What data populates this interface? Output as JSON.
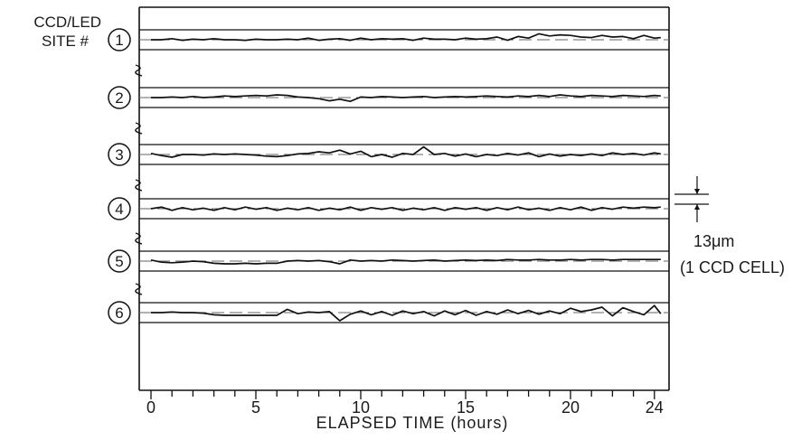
{
  "chart_data": {
    "type": "line",
    "ylabel": "CCD/LED SITE #",
    "xlabel": "ELAPSED TIME (hours)",
    "xlim": [
      0,
      24.3
    ],
    "x_ticks": [
      "0",
      "5",
      "10",
      "15",
      "20",
      "24"
    ],
    "scale_bar_value": "13μm",
    "scale_bar_note": "(1 CCD CELL)",
    "grid": false,
    "series": [
      {
        "name": "1",
        "x": [
          0,
          0.5,
          1,
          1.5,
          2,
          2.5,
          3,
          3.5,
          4,
          4.5,
          5,
          5.5,
          6,
          6.5,
          7,
          7.5,
          8,
          8.5,
          9,
          9.5,
          10,
          10.5,
          11,
          11.5,
          12,
          12.5,
          13,
          13.5,
          14,
          14.5,
          15,
          15.5,
          16,
          16.5,
          17,
          17.5,
          18,
          18.5,
          19,
          19.5,
          20,
          20.5,
          21,
          21.5,
          22,
          22.5,
          23,
          23.5,
          24,
          24.3
        ],
        "y": [
          0,
          0,
          0.2,
          -0.1,
          0.1,
          0,
          0.2,
          0,
          0,
          -0.1,
          0.1,
          0,
          0,
          0.1,
          0,
          0.3,
          -0.1,
          0.1,
          0.2,
          -0.1,
          0.3,
          0,
          0.2,
          0.1,
          0.2,
          -0.1,
          0.3,
          0.1,
          0.1,
          0,
          0.3,
          0.1,
          0.2,
          0.5,
          -0.1,
          0.6,
          0.3,
          1.1,
          0.7,
          0.9,
          0.8,
          0.5,
          0.4,
          0.8,
          0.5,
          0.6,
          0.2,
          0.8,
          0.3,
          0.4
        ]
      },
      {
        "name": "2",
        "x": [
          0,
          0.5,
          1,
          1.5,
          2,
          2.5,
          3,
          3.5,
          4,
          4.5,
          5,
          5.5,
          6,
          6.5,
          7,
          7.5,
          8,
          8.5,
          9,
          9.5,
          10,
          10.5,
          11,
          11.5,
          12,
          12.5,
          13,
          13.5,
          14,
          14.5,
          15,
          15.5,
          16,
          16.5,
          17,
          17.5,
          18,
          18.5,
          19,
          19.5,
          20,
          20.5,
          21,
          21.5,
          22,
          22.5,
          23,
          23.5,
          24,
          24.3
        ],
        "y": [
          0,
          0,
          0.1,
          0,
          0.2,
          0,
          0.1,
          0.3,
          0.2,
          0.3,
          0.4,
          0.3,
          0.5,
          0.4,
          0.1,
          0,
          -0.2,
          -0.6,
          -0.3,
          -0.7,
          0.1,
          0,
          0.2,
          0.1,
          0,
          0.1,
          0.2,
          0,
          0.1,
          0.2,
          0.1,
          0.2,
          0.3,
          0.2,
          0.1,
          0.3,
          0.2,
          0.4,
          0.2,
          0.5,
          0.3,
          0.2,
          0.4,
          0.3,
          0.2,
          0.4,
          0.3,
          0.2,
          0.4,
          0.3
        ]
      },
      {
        "name": "3",
        "x": [
          0,
          0.5,
          1,
          1.5,
          2,
          2.5,
          3,
          3.5,
          4,
          4.5,
          5,
          5.5,
          6,
          6.5,
          7,
          7.5,
          8,
          8.5,
          9,
          9.5,
          10,
          10.5,
          11,
          11.5,
          12,
          12.5,
          13,
          13.5,
          14,
          14.5,
          15,
          15.5,
          16,
          16.5,
          17,
          17.5,
          18,
          18.5,
          19,
          19.5,
          20,
          20.5,
          21,
          21.5,
          22,
          22.5,
          23,
          23.5,
          24,
          24.3
        ],
        "y": [
          0.2,
          -0.2,
          -0.5,
          0,
          0,
          -0.1,
          0.1,
          0,
          0.1,
          0,
          -0.1,
          -0.3,
          -0.4,
          -0.2,
          0.1,
          0.2,
          0.5,
          0.3,
          0.8,
          0.1,
          0.6,
          -0.4,
          0,
          -0.5,
          0.2,
          0,
          1.4,
          0,
          0.2,
          -0.3,
          0.1,
          -0.4,
          0,
          -0.2,
          0.2,
          -0.1,
          0.3,
          -0.4,
          0.1,
          -0.3,
          0,
          -0.2,
          0.1,
          -0.2,
          0.3,
          0,
          0.2,
          -0.1,
          0.3,
          0.1
        ]
      },
      {
        "name": "4",
        "x": [
          0,
          0.5,
          1,
          1.5,
          2,
          2.5,
          3,
          3.5,
          4,
          4.5,
          5,
          5.5,
          6,
          6.5,
          7,
          7.5,
          8,
          8.5,
          9,
          9.5,
          10,
          10.5,
          11,
          11.5,
          12,
          12.5,
          13,
          13.5,
          14,
          14.5,
          15,
          15.5,
          16,
          16.5,
          17,
          17.5,
          18,
          18.5,
          19,
          19.5,
          20,
          20.5,
          21,
          21.5,
          22,
          22.5,
          23,
          23.5,
          24,
          24.3
        ],
        "y": [
          0,
          0.3,
          -0.3,
          0.2,
          -0.2,
          0.1,
          -0.3,
          0.2,
          -0.2,
          0.3,
          -0.1,
          0.2,
          -0.3,
          0.1,
          -0.2,
          0.2,
          -0.3,
          0.1,
          -0.2,
          0.3,
          -0.3,
          0.2,
          -0.1,
          0.2,
          -0.3,
          0.1,
          -0.2,
          0.2,
          -0.3,
          0.2,
          -0.1,
          0.2,
          -0.3,
          0.2,
          -0.2,
          0.3,
          -0.2,
          0.1,
          -0.3,
          0.2,
          -0.2,
          0.3,
          -0.3,
          0.2,
          -0.1,
          0.3,
          0.1,
          0.3,
          0.2,
          0.3
        ]
      },
      {
        "name": "5",
        "x": [
          0,
          0.5,
          1,
          1.5,
          2,
          2.5,
          3,
          3.5,
          4,
          4.5,
          5,
          5.5,
          6,
          6.5,
          7,
          7.5,
          8,
          8.5,
          9,
          9.5,
          10,
          10.5,
          11,
          11.5,
          12,
          12.5,
          13,
          13.5,
          14,
          14.5,
          15,
          15.5,
          16,
          16.5,
          17,
          17.5,
          18,
          18.5,
          19,
          19.5,
          20,
          20.5,
          21,
          21.5,
          22,
          22.5,
          23,
          23.5,
          24,
          24.3
        ],
        "y": [
          0.2,
          -0.2,
          -0.3,
          -0.2,
          0,
          -0.1,
          -0.4,
          -0.5,
          -0.5,
          -0.4,
          -0.5,
          -0.4,
          -0.4,
          0,
          0.1,
          0,
          0.1,
          -0.1,
          -0.5,
          0.2,
          0,
          0.1,
          0,
          0.2,
          0.1,
          0,
          0.1,
          0.2,
          0,
          0.1,
          0.2,
          0.1,
          0.2,
          0.1,
          0.3,
          0.2,
          0.2,
          0.3,
          0.2,
          0.2,
          0.3,
          0.2,
          0.3,
          0.3,
          0.2,
          0.3,
          0.3,
          0.3,
          0.3,
          0.3
        ]
      },
      {
        "name": "6",
        "x": [
          0,
          0.5,
          1,
          1.5,
          2,
          2.5,
          3,
          3.5,
          4,
          4.5,
          5,
          5.5,
          6,
          6.5,
          7,
          7.5,
          8,
          8.5,
          9,
          9.5,
          10,
          10.5,
          11,
          11.5,
          12,
          12.5,
          13,
          13.5,
          14,
          14.5,
          15,
          15.5,
          16,
          16.5,
          17,
          17.5,
          18,
          18.5,
          19,
          19.5,
          20,
          20.5,
          21,
          21.5,
          22,
          22.5,
          23,
          23.5,
          24,
          24.3
        ],
        "y": [
          0,
          0,
          0.1,
          0,
          0,
          -0.1,
          -0.4,
          -0.5,
          -0.5,
          -0.5,
          -0.5,
          -0.5,
          -0.5,
          0.6,
          -0.2,
          0.1,
          0,
          0.2,
          -1.5,
          -0.3,
          0.3,
          -0.4,
          0.2,
          -0.5,
          0.3,
          -0.2,
          0.2,
          -0.6,
          0.3,
          -0.4,
          0.4,
          -0.5,
          0.2,
          -0.3,
          0.5,
          -0.2,
          0.4,
          -0.3,
          0.3,
          -0.2,
          0.8,
          0.2,
          0.5,
          1.0,
          -0.6,
          0.9,
          0.2,
          -0.4,
          1.3,
          -0.2
        ]
      }
    ]
  }
}
